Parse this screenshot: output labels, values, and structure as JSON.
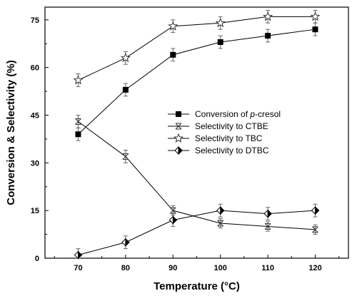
{
  "chart_data": {
    "type": "line",
    "xlabel": "Temperature (°C)",
    "ylabel": "Conversion & Selectivity (%)",
    "x": [
      70,
      80,
      90,
      100,
      110,
      120
    ],
    "x_ticks": [
      "70",
      "80",
      "90",
      "100",
      "110",
      "120"
    ],
    "y_ticks": [
      "0",
      "15",
      "30",
      "45",
      "60",
      "75"
    ],
    "xlim": [
      63,
      127
    ],
    "ylim": [
      0,
      79
    ],
    "grid": false,
    "legend_position": "center-right",
    "series": [
      {
        "name": "Conversion of p-cresol",
        "marker": "filled-square",
        "values": [
          39,
          53,
          64,
          68,
          70,
          72
        ],
        "errors": [
          2,
          2,
          2,
          2,
          2,
          2
        ]
      },
      {
        "name": "Selectivity to CTBE",
        "marker": "x-box",
        "values": [
          43,
          32,
          15,
          11,
          10,
          9
        ],
        "errors": [
          2,
          2,
          1.5,
          1.5,
          1.5,
          1.5
        ]
      },
      {
        "name": "Selectivity to TBC",
        "marker": "open-star",
        "values": [
          56,
          63,
          73,
          74,
          76,
          76
        ],
        "errors": [
          2,
          2,
          2,
          2,
          2,
          2
        ]
      },
      {
        "name": "Selectivity to DTBC",
        "marker": "half-diamond",
        "values": [
          1,
          5,
          12,
          15,
          14,
          15
        ],
        "errors": [
          2,
          2,
          2,
          2,
          2,
          2
        ]
      }
    ]
  }
}
